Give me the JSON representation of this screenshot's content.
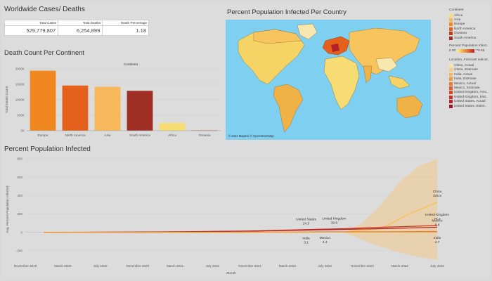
{
  "header": {
    "title": "Worldwide Cases/ Deaths"
  },
  "kpi": {
    "cols": [
      "Total Cases",
      "Total Deaths",
      "Death Percentage"
    ],
    "vals": [
      "529,779,807",
      "6,254,899",
      "1.18"
    ]
  },
  "map_section": {
    "title": "Percent Population Infected Per Country",
    "attribution": "© 2022 Mapbox © OpenStreetMap"
  },
  "legend": {
    "continent_title": "Continent",
    "continents": [
      {
        "label": "Africa",
        "color": "#f6dc73"
      },
      {
        "label": "Asia",
        "color": "#f7b75b"
      },
      {
        "label": "Europe",
        "color": "#f0871f"
      },
      {
        "label": "North America",
        "color": "#e5601b"
      },
      {
        "label": "Oceania",
        "color": "#c8391b"
      },
      {
        "label": "South America",
        "color": "#9f2f24"
      }
    ],
    "infected_title": "Percent Population Infect..",
    "infected_min": "0.00",
    "infected_max": "70.65",
    "forecast_title": "Location, Forecast indicat..",
    "forecast": [
      {
        "label": "China, Actual",
        "color": "#fbe6a1"
      },
      {
        "label": "China, Estimate",
        "color": "#f8c97a"
      },
      {
        "label": "India, Actual",
        "color": "#f7b75b"
      },
      {
        "label": "India, Estimate",
        "color": "#f29b3b"
      },
      {
        "label": "Mexico, Actual",
        "color": "#ee7a2f"
      },
      {
        "label": "Mexico, Estimate",
        "color": "#e65c2a"
      },
      {
        "label": "United Kingdom, Actu..",
        "color": "#dc4526"
      },
      {
        "label": "United Kingdom, Esti..",
        "color": "#cc3026"
      },
      {
        "label": "United States, Actual",
        "color": "#b71f2b"
      },
      {
        "label": "United States, Estim..",
        "color": "#9c1530"
      }
    ]
  },
  "bar_section": {
    "title": "Death Count Per Continent"
  },
  "line_section": {
    "title": "Percent Population Infected"
  },
  "chart_data": [
    {
      "type": "bar",
      "title": "Death Count Per Continent",
      "header": "Continent",
      "ylabel": "Total Death Count",
      "categories": [
        "Europe",
        "North America",
        "Asia",
        "South America",
        "Africa",
        "Oceania"
      ],
      "values": [
        1940000,
        1460000,
        1420000,
        1290000,
        250000,
        10000
      ],
      "colors": [
        "#f0871f",
        "#e5601b",
        "#f7b75b",
        "#9f2f24",
        "#f6dc73",
        "#c8391b"
      ],
      "ylim": [
        0,
        2000000
      ],
      "yticks": [
        0,
        500000,
        1000000,
        1500000,
        2000000
      ],
      "ytick_labels": [
        "0K",
        "500K",
        "1000K",
        "1500K",
        "2000K"
      ]
    },
    {
      "type": "line",
      "title": "Percent Population Infected",
      "xlabel": "Month",
      "ylabel": "Avg. Percent Population Infected",
      "ylim": [
        -300,
        800
      ],
      "yticks": [
        -200,
        0,
        200,
        400,
        600,
        800
      ],
      "ytick_labels": [
        "-200",
        "0",
        "200",
        "400",
        "600",
        "800"
      ],
      "xticks": [
        "November 2019",
        "March 2020",
        "July 2020",
        "November 2020",
        "March 2021",
        "July 2021",
        "November 2021",
        "March 2022",
        "July 2022",
        "November 2022",
        "March 2023",
        "July 2023"
      ],
      "forecast_band": {
        "x": [
          "2022-09",
          "2022-11",
          "2023-01",
          "2023-03",
          "2023-05",
          "2023-07"
        ],
        "upper": [
          0,
          100,
          300,
          550,
          720,
          800
        ],
        "lower": [
          0,
          -80,
          -160,
          -220,
          -270,
          -300
        ]
      },
      "series": [
        {
          "name": "China",
          "x": [
            "2020-01",
            "2021-01",
            "2022-01",
            "2022-05",
            "2022-09",
            "2023-01",
            "2023-04",
            "2023-07"
          ],
          "values": [
            0,
            0.1,
            0.3,
            1,
            5,
            40,
            200,
            325.8
          ],
          "color": "#f6c14e"
        },
        {
          "name": "United Kingdom",
          "x": [
            "2020-01",
            "2020-11",
            "2021-05",
            "2021-11",
            "2022-05",
            "2022-09",
            "2023-01",
            "2023-07"
          ],
          "values": [
            0,
            2,
            6,
            13,
            30.6,
            40,
            55,
            74.2
          ],
          "color": "#c8391b"
        },
        {
          "name": "United States",
          "x": [
            "2020-01",
            "2020-11",
            "2021-05",
            "2021-11",
            "2022-05",
            "2022-09",
            "2023-01",
            "2023-07"
          ],
          "values": [
            0,
            3,
            8,
            14,
            24.3,
            32,
            40,
            55
          ],
          "color": "#b71f2b"
        },
        {
          "name": "Mexico",
          "x": [
            "2020-01",
            "2020-11",
            "2021-05",
            "2021-11",
            "2022-05",
            "2022-09",
            "2023-01",
            "2023-07"
          ],
          "values": [
            0,
            0.9,
            1.7,
            2.7,
            4.4,
            5.2,
            6.4,
            8.8
          ],
          "color": "#e5601b"
        },
        {
          "name": "India",
          "x": [
            "2020-01",
            "2020-11",
            "2021-05",
            "2021-11",
            "2022-05",
            "2022-09",
            "2023-01",
            "2023-07"
          ],
          "values": [
            0,
            0.7,
            1.9,
            2.5,
            3.1,
            3.5,
            4.0,
            4.7
          ],
          "color": "#f29b3b"
        }
      ],
      "labels": [
        {
          "text": "United States",
          "value": "24.3",
          "x": "2022-05",
          "y": 24.3
        },
        {
          "text": "United Kingdom",
          "value": "30.6",
          "x": "2022-08",
          "y": 30.6
        },
        {
          "text": "India",
          "value": "3.1",
          "x": "2022-05",
          "y": 3.1,
          "below": true
        },
        {
          "text": "Mexico",
          "value": "4.4",
          "x": "2022-07",
          "y": 4.4,
          "below": true
        },
        {
          "text": "China",
          "value": "325.8",
          "x": "2023-07",
          "y": 325.8
        },
        {
          "text": "United Kingdom",
          "value": "74.2",
          "x": "2023-07",
          "y": 74.2
        },
        {
          "text": "Mexico",
          "value": "8.8",
          "x": "2023-07",
          "y": 8.8
        },
        {
          "text": "India",
          "value": "4.7",
          "x": "2023-07",
          "y": 4.7,
          "below": true
        }
      ]
    }
  ]
}
